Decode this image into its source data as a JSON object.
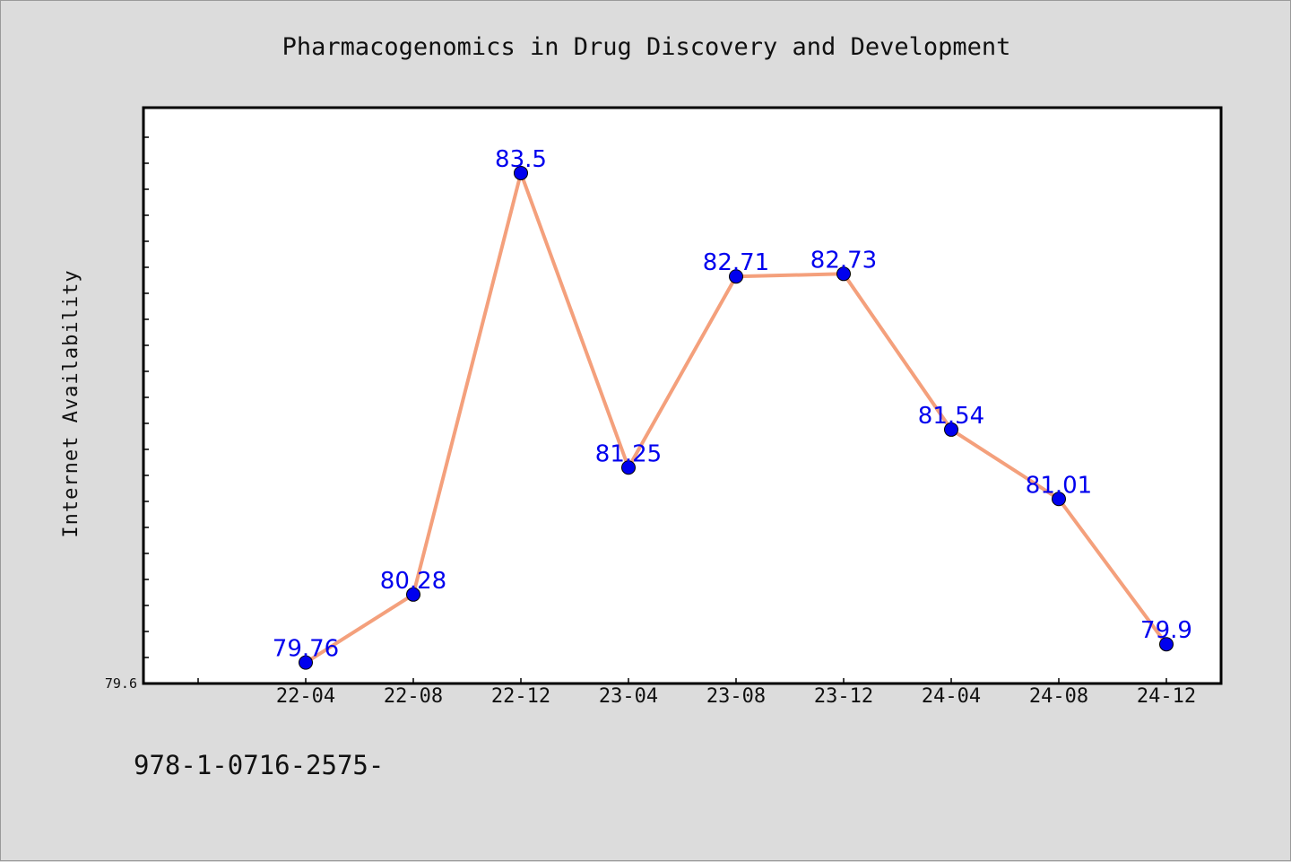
{
  "chart_data": {
    "type": "line",
    "title": "Pharmacogenomics in Drug Discovery and Development",
    "xlabel": "",
    "ylabel": "Internet Availability",
    "categories": [
      "22-04",
      "22-08",
      "22-12",
      "23-04",
      "23-08",
      "23-12",
      "24-04",
      "24-08",
      "24-12"
    ],
    "values": [
      79.76,
      80.28,
      83.5,
      81.25,
      82.71,
      82.73,
      81.54,
      81.01,
      79.9
    ],
    "data_labels": [
      "79.76",
      "80.28",
      "83.5",
      "81.25",
      "82.71",
      "82.73",
      "81.54",
      "81.01",
      "79.9"
    ],
    "ylim": [
      79.6,
      84.0
    ],
    "y_tick_label": "79.6",
    "grid": false,
    "legend": "none"
  },
  "footnote": "978-1-0716-2575-",
  "colors": {
    "line": "#f4a07c",
    "marker": "#0000ee",
    "data_label": "#0000ee",
    "plot_background": "#ffffff",
    "page_background": "#dcdcdc"
  }
}
